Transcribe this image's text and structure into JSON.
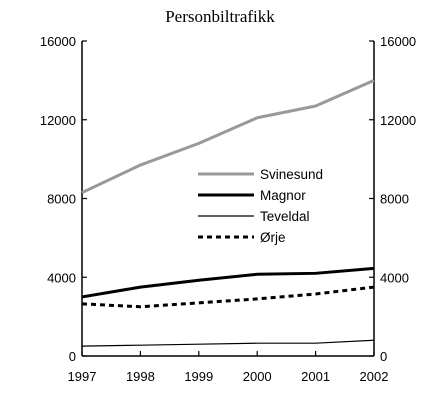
{
  "chart_data": {
    "type": "line",
    "title": "Personbiltrafikk",
    "x": [
      1997,
      1998,
      1999,
      2000,
      2001,
      2002
    ],
    "xlim": [
      1997,
      2002
    ],
    "ylim": [
      0,
      16000
    ],
    "yticks": [
      0,
      4000,
      8000,
      12000,
      16000
    ],
    "ytick_labels": [
      "0",
      "4000",
      "8000",
      "12000",
      "16000"
    ],
    "secondary_y_axis": true,
    "grid": false,
    "legend_position": "center-right",
    "series": [
      {
        "name": "Svinesund",
        "values": [
          8300,
          9700,
          10800,
          12100,
          12700,
          14000
        ],
        "color": "#999999",
        "style": "solid",
        "width": "thick"
      },
      {
        "name": "Magnor",
        "values": [
          3000,
          3500,
          3850,
          4150,
          4200,
          4450
        ],
        "color": "#000000",
        "style": "solid",
        "width": "thick"
      },
      {
        "name": "Teveldal",
        "values": [
          500,
          550,
          600,
          650,
          650,
          800
        ],
        "color": "#000000",
        "style": "solid",
        "width": "thin"
      },
      {
        "name": "Ørje",
        "values": [
          2650,
          2500,
          2700,
          2900,
          3150,
          3500
        ],
        "color": "#000000",
        "style": "dashed",
        "width": "thick"
      }
    ]
  }
}
